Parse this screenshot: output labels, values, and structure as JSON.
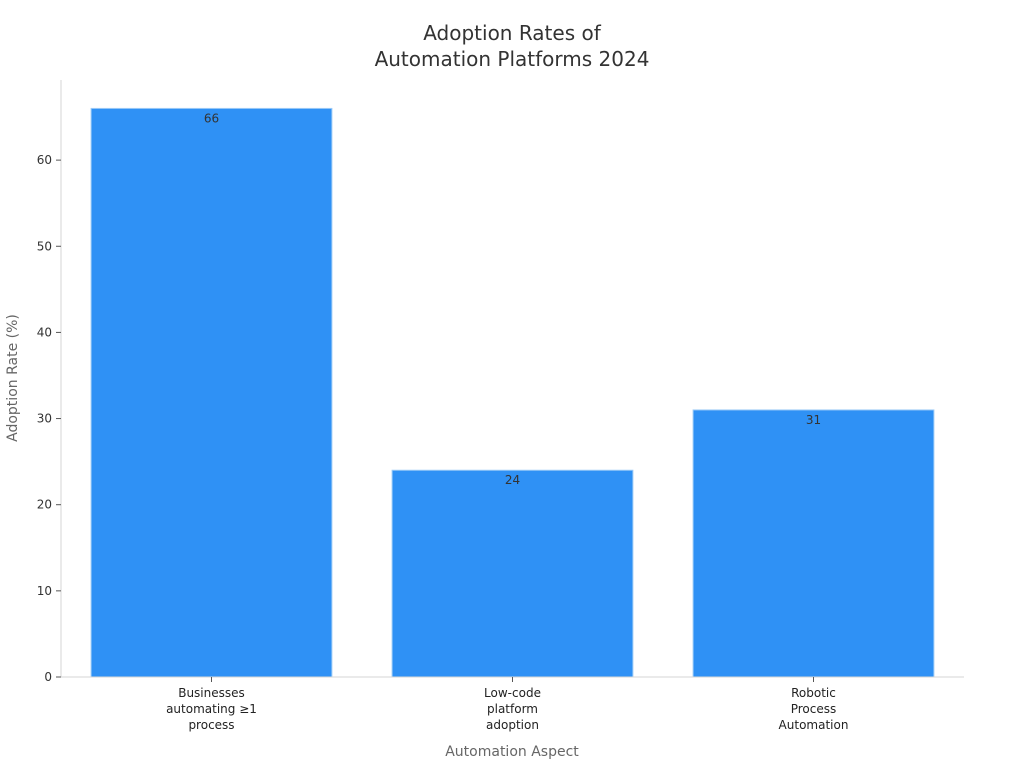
{
  "chart_data": {
    "type": "bar",
    "title_lines": [
      "Adoption Rates of",
      "Automation Platforms 2024"
    ],
    "xlabel": "Automation Aspect",
    "ylabel": "Adoption Rate (%)",
    "categories": [
      [
        "Businesses",
        "automating ≥1",
        "process"
      ],
      [
        "Low-code",
        "platform",
        "adoption"
      ],
      [
        "Robotic",
        "Process",
        "Automation"
      ]
    ],
    "values": [
      66,
      24,
      31
    ],
    "data_labels": [
      "66",
      "24",
      "31"
    ],
    "ylim": [
      0,
      69.3
    ],
    "yticks": [
      0,
      10,
      20,
      30,
      40,
      50,
      60
    ],
    "bar_color": "#2f91f5",
    "grid": false,
    "legend": "none"
  }
}
